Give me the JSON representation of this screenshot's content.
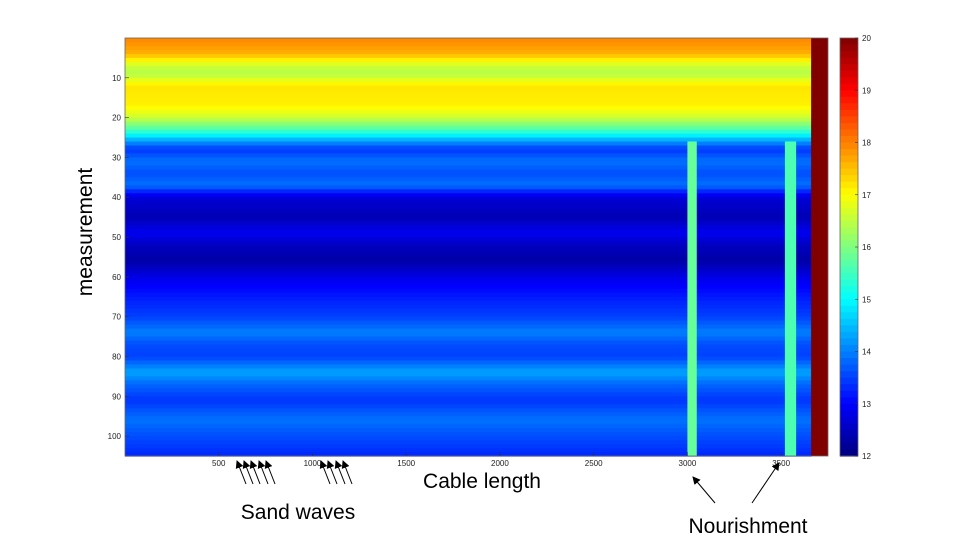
{
  "chart_data": {
    "type": "heatmap",
    "title": "",
    "xlabel": "Cable length",
    "ylabel": "measurement",
    "xlim": [
      0,
      3750
    ],
    "ylim": [
      0,
      105
    ],
    "y_reversed": true,
    "x_ticks": [
      500,
      1000,
      1500,
      2000,
      2500,
      3000,
      3500
    ],
    "y_ticks": [
      10,
      20,
      30,
      40,
      50,
      60,
      70,
      80,
      90,
      100
    ],
    "colorbar": {
      "colormap": "jet",
      "range": [
        12,
        20
      ],
      "ticks": [
        12,
        13,
        14,
        15,
        16,
        17,
        18,
        19,
        20
      ]
    },
    "row_profile": [
      {
        "measurement": 1,
        "value": 17.9
      },
      {
        "measurement": 4,
        "value": 17.6
      },
      {
        "measurement": 7,
        "value": 16.6
      },
      {
        "measurement": 9,
        "value": 16.4
      },
      {
        "measurement": 12,
        "value": 17.2
      },
      {
        "measurement": 17,
        "value": 17.1
      },
      {
        "measurement": 20,
        "value": 16.6
      },
      {
        "measurement": 23,
        "value": 15.6
      },
      {
        "measurement": 26,
        "value": 14.2
      },
      {
        "measurement": 28,
        "value": 13.4
      },
      {
        "measurement": 31,
        "value": 13.9
      },
      {
        "measurement": 34,
        "value": 13.6
      },
      {
        "measurement": 37,
        "value": 13.9
      },
      {
        "measurement": 40,
        "value": 12.7
      },
      {
        "measurement": 45,
        "value": 12.4
      },
      {
        "measurement": 49,
        "value": 12.9
      },
      {
        "measurement": 52,
        "value": 12.5
      },
      {
        "measurement": 56,
        "value": 12.3
      },
      {
        "measurement": 60,
        "value": 12.8
      },
      {
        "measurement": 65,
        "value": 13.2
      },
      {
        "measurement": 70,
        "value": 13.5
      },
      {
        "measurement": 74,
        "value": 14.0
      },
      {
        "measurement": 77,
        "value": 13.6
      },
      {
        "measurement": 80,
        "value": 13.5
      },
      {
        "measurement": 84,
        "value": 14.3
      },
      {
        "measurement": 87,
        "value": 13.8
      },
      {
        "measurement": 91,
        "value": 13.4
      },
      {
        "measurement": 96,
        "value": 13.9
      },
      {
        "measurement": 100,
        "value": 13.6
      },
      {
        "measurement": 105,
        "value": 13.3
      }
    ],
    "warm_columns": [
      {
        "x_range": [
          3000,
          3050
        ],
        "value": 15.8
      },
      {
        "x_range": [
          3520,
          3580
        ],
        "value": 15.6
      }
    ],
    "high_column": {
      "x_range": [
        3660,
        3750
      ],
      "value": 20
    },
    "annotations": [
      {
        "text": "Sand waves",
        "arrows": 9
      },
      {
        "text": "Nourishment",
        "arrows": 2
      }
    ]
  }
}
